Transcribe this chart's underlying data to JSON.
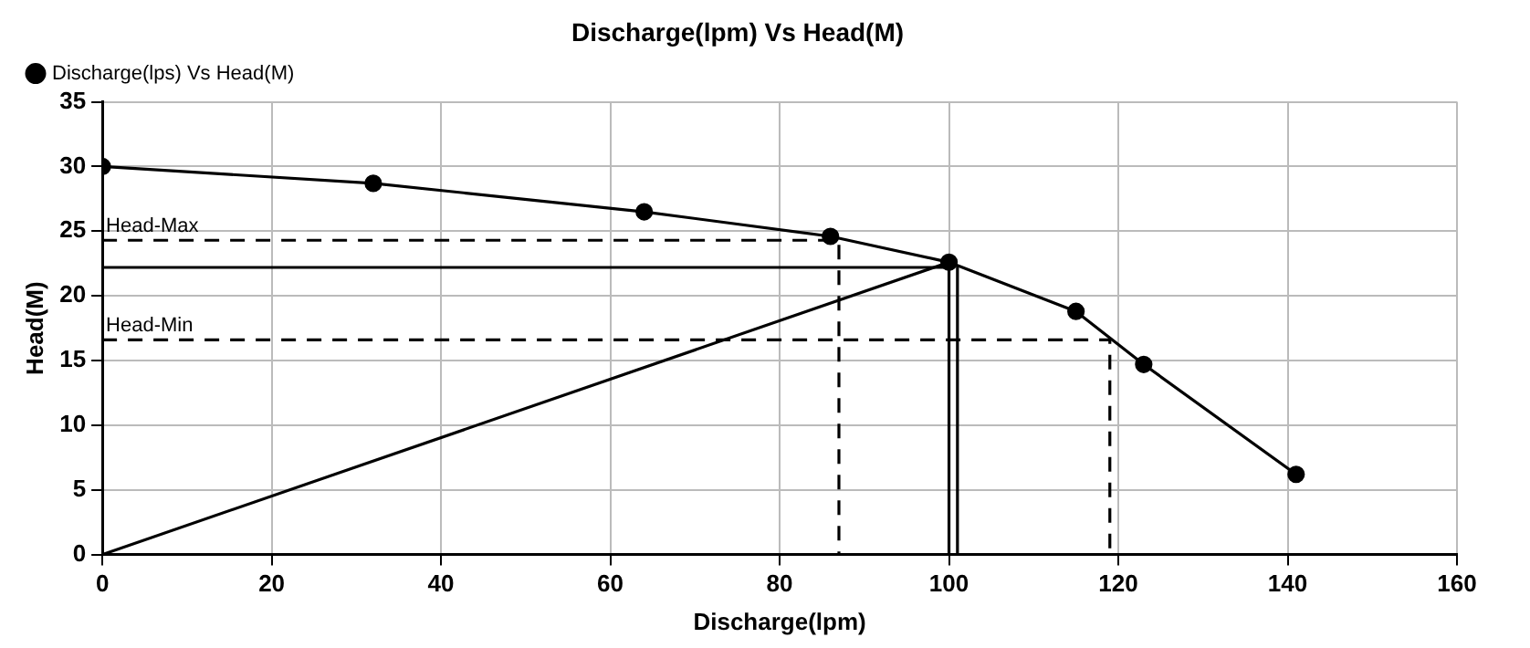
{
  "chart_data": {
    "type": "line",
    "title": "Discharge(lpm) Vs Head(M)",
    "xlabel": "Discharge(lpm)",
    "ylabel": "Head(M)",
    "xlim": [
      0,
      160
    ],
    "xticks": [
      0,
      20,
      40,
      60,
      80,
      100,
      120,
      140,
      160
    ],
    "ylim": [
      0,
      35
    ],
    "yticks": [
      0,
      5,
      10,
      15,
      20,
      25,
      30,
      35
    ],
    "grid": true,
    "legend": "top left",
    "series": [
      {
        "name": "Discharge(lps) Vs Head(M)",
        "color": "#000000",
        "marker": "circle",
        "x": [
          0,
          32,
          64,
          86,
          100,
          115,
          123,
          141
        ],
        "values": [
          30,
          28.7,
          26.5,
          24.6,
          22.6,
          18.8,
          14.7,
          6.2
        ]
      },
      {
        "color": "#000000",
        "marker": "none",
        "x": [
          0,
          100
        ],
        "values": [
          0,
          22.6
        ]
      },
      {
        "color": "#000000",
        "marker": "none",
        "x": [
          0,
          100
        ],
        "values": [
          22.2,
          22.2
        ]
      },
      {
        "color": "#000000",
        "marker": "none",
        "x": [
          100,
          100
        ],
        "values": [
          0,
          22.6
        ]
      },
      {
        "color": "#000000",
        "marker": "none",
        "x": [
          101,
          101
        ],
        "values": [
          0,
          22.4
        ]
      },
      {
        "color": "#000000",
        "marker": "none",
        "line_style": "dashed",
        "x": [
          0,
          87,
          87
        ],
        "values": [
          24.3,
          24.3,
          0
        ]
      },
      {
        "color": "#000000",
        "marker": "none",
        "line_style": "dashed",
        "x": [
          0,
          119,
          119
        ],
        "values": [
          16.6,
          16.6,
          0
        ]
      }
    ],
    "annotations": [
      {
        "text": "Head-Max",
        "x": 0,
        "y": 24.3
      },
      {
        "text": "Head-Min",
        "x": 0,
        "y": 16.6
      }
    ]
  }
}
